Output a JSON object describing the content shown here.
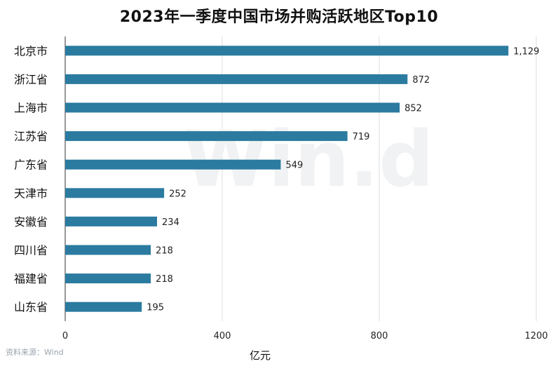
{
  "chart_data": {
    "type": "bar",
    "orientation": "horizontal",
    "title": "2023年一季度中国市场并购活跃地区Top10",
    "xlabel": "亿元",
    "ylabel": "",
    "xlim": [
      0,
      1200
    ],
    "xticks": [
      0,
      400,
      800,
      1200
    ],
    "grid": true,
    "categories": [
      "北京市",
      "浙江省",
      "上海市",
      "江苏省",
      "广东省",
      "天津市",
      "安徽省",
      "四川省",
      "福建省",
      "山东省"
    ],
    "values": [
      1129,
      872,
      852,
      719,
      549,
      252,
      234,
      218,
      218,
      195
    ],
    "value_labels": [
      "1,129",
      "872",
      "852",
      "719",
      "549",
      "252",
      "234",
      "218",
      "218",
      "195"
    ],
    "bar_color": "#2b7ba0",
    "grid_color": "#d9dde2"
  },
  "watermark": "Win.d",
  "source_note": "资料来源：Wind"
}
